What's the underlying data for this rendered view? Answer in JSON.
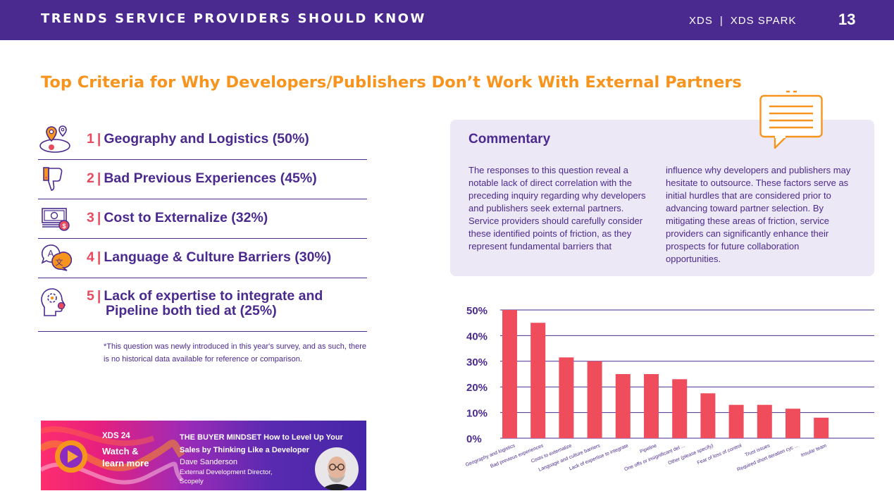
{
  "header": {
    "title": "TRENDS SERVICE PROVIDERS SHOULD KNOW",
    "brand1": "XDS",
    "separator": "|",
    "brand2": "XDS SPARK",
    "page_number": "13"
  },
  "main_title": "Top Criteria for Why Developers/Publishers Don’t Work With External Partners",
  "criteria": [
    {
      "num": "1",
      "label": "Geography and Logistics (50%)",
      "icon": "map-pin-icon"
    },
    {
      "num": "2",
      "label": "Bad Previous Experiences (45%)",
      "icon": "thumbs-down-icon"
    },
    {
      "num": "3",
      "label": "Cost to Externalize (32%)",
      "icon": "money-icon"
    },
    {
      "num": "4",
      "label": "Language & Culture Barriers (30%)",
      "icon": "translate-icon"
    },
    {
      "num": "5",
      "label_line1": "Lack of expertise to integrate and",
      "label_line2": "Pipeline both tied at (25%)",
      "icon": "gear-head-icon"
    }
  ],
  "criteria_sep": "|",
  "footnote": "*This question was newly introduced in this year's survey, and as such, there is no historical data available for reference or comparison.",
  "commentary": {
    "title": "Commentary",
    "col1": "The responses to this question reveal a notable lack of direct correlation with the preceding inquiry regarding why developers and publishers seek external partners.",
    "col1b": "Service providers should carefully consider these identified points of friction, as they represent fundamental barriers that",
    "col2": "influence why developers and publishers may hesitate to outsource. These factors serve as initial hurdles that are considered prior to advancing toward partner selection. By mitigating these areas of friction, service providers can significantly enhance their prospects for future collaboration opportunities."
  },
  "chart_data": {
    "type": "bar",
    "categories": [
      "Geography and logistics",
      "Bad previous experiences",
      "Costs to externalize",
      "Language and culture barriers",
      "Lack of expertise to integrate",
      "Pipeline",
      "One offs or insignificant del ...",
      "Other (please specify)",
      "Fear of loss of control",
      "Trust issues",
      "Required short iteration cyc ...",
      "Insular team"
    ],
    "values": [
      50,
      45,
      31.5,
      30,
      25,
      25,
      23,
      17.5,
      13,
      13,
      11.5,
      8
    ],
    "yticks": [
      "0%",
      "10%",
      "20%",
      "30%",
      "40%",
      "50%"
    ],
    "ylim": [
      0,
      50
    ],
    "bar_color": "#ef4c5c",
    "grid": true
  },
  "banner": {
    "tag": "XDS 24",
    "watch_line1": "Watch &",
    "watch_line2": "learn more",
    "title": "THE BUYER MINDSET How to Level Up Your Sales by Thinking Like a Developer",
    "speaker": "Dave Sanderson",
    "role": "External Development Director, Scopely"
  },
  "colors": {
    "purple": "#4b2a8f",
    "orange": "#f7941d",
    "red": "#e84a5f",
    "commentary_bg": "#ece8f6"
  }
}
